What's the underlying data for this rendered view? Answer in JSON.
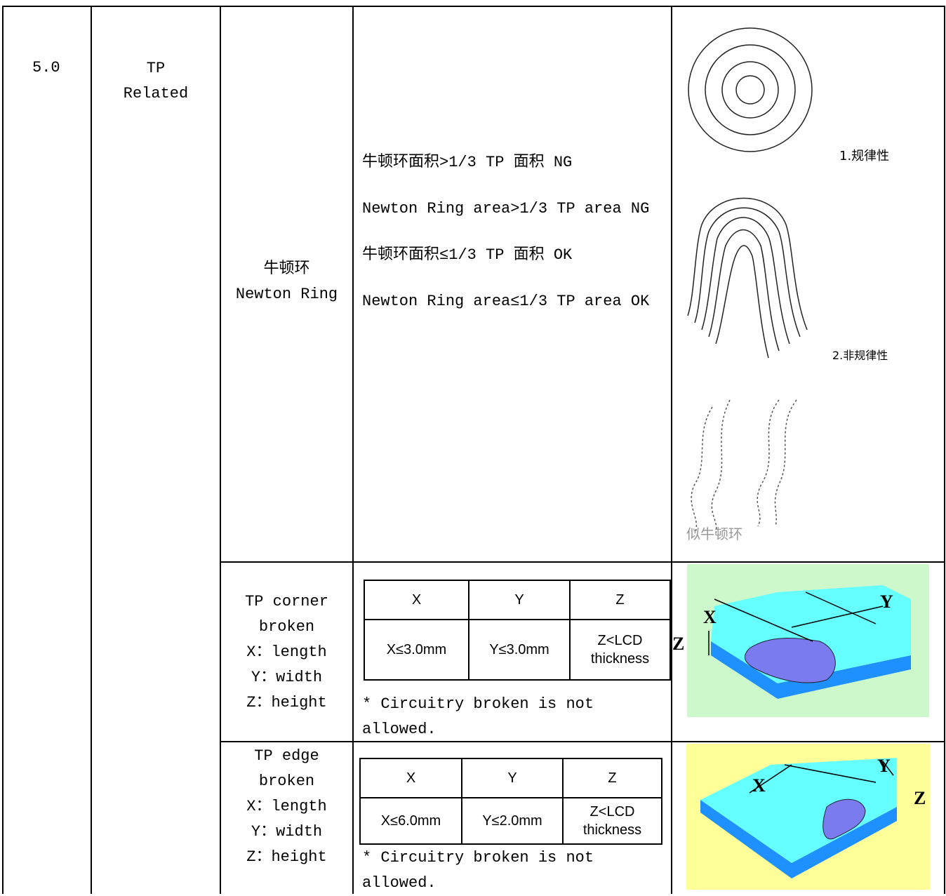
{
  "section": {
    "number": "5.0",
    "title": [
      "TP",
      "Related"
    ]
  },
  "rows": [
    {
      "item": [
        "牛顿环",
        "Newton Ring"
      ],
      "criteria": [
        "牛顿环面积>1/3 TP 面积 NG",
        "Newton Ring area>1/3 TP area NG",
        "牛顿环面积≤1/3 TP 面积 OK",
        "Newton Ring area≤1/3 TP area OK"
      ],
      "figure_labels": [
        "1.规律性",
        "2.非规律性",
        "似牛顿环"
      ]
    },
    {
      "item": [
        "TP corner",
        "broken",
        "X：length",
        "Y：width",
        "Z：height"
      ],
      "table": {
        "header": [
          "X",
          "Y",
          "Z"
        ],
        "row": [
          "X≤3.0mm",
          "Y≤3.0mm",
          "Z<LCD thickness"
        ]
      },
      "note": "* Circuitry broken is not allowed.",
      "figure_labels": [
        "X",
        "Y",
        "Z"
      ]
    },
    {
      "item": [
        "TP edge",
        "broken",
        "X：length",
        "Y：width",
        "Z：height"
      ],
      "table": {
        "header": [
          "X",
          "Y",
          "Z"
        ],
        "row": [
          "X≤6.0mm",
          "Y≤2.0mm",
          "Z<LCD thickness"
        ]
      },
      "note": "* Circuitry broken is not allowed.",
      "figure_labels": [
        "X",
        "Y",
        "Z"
      ]
    }
  ]
}
